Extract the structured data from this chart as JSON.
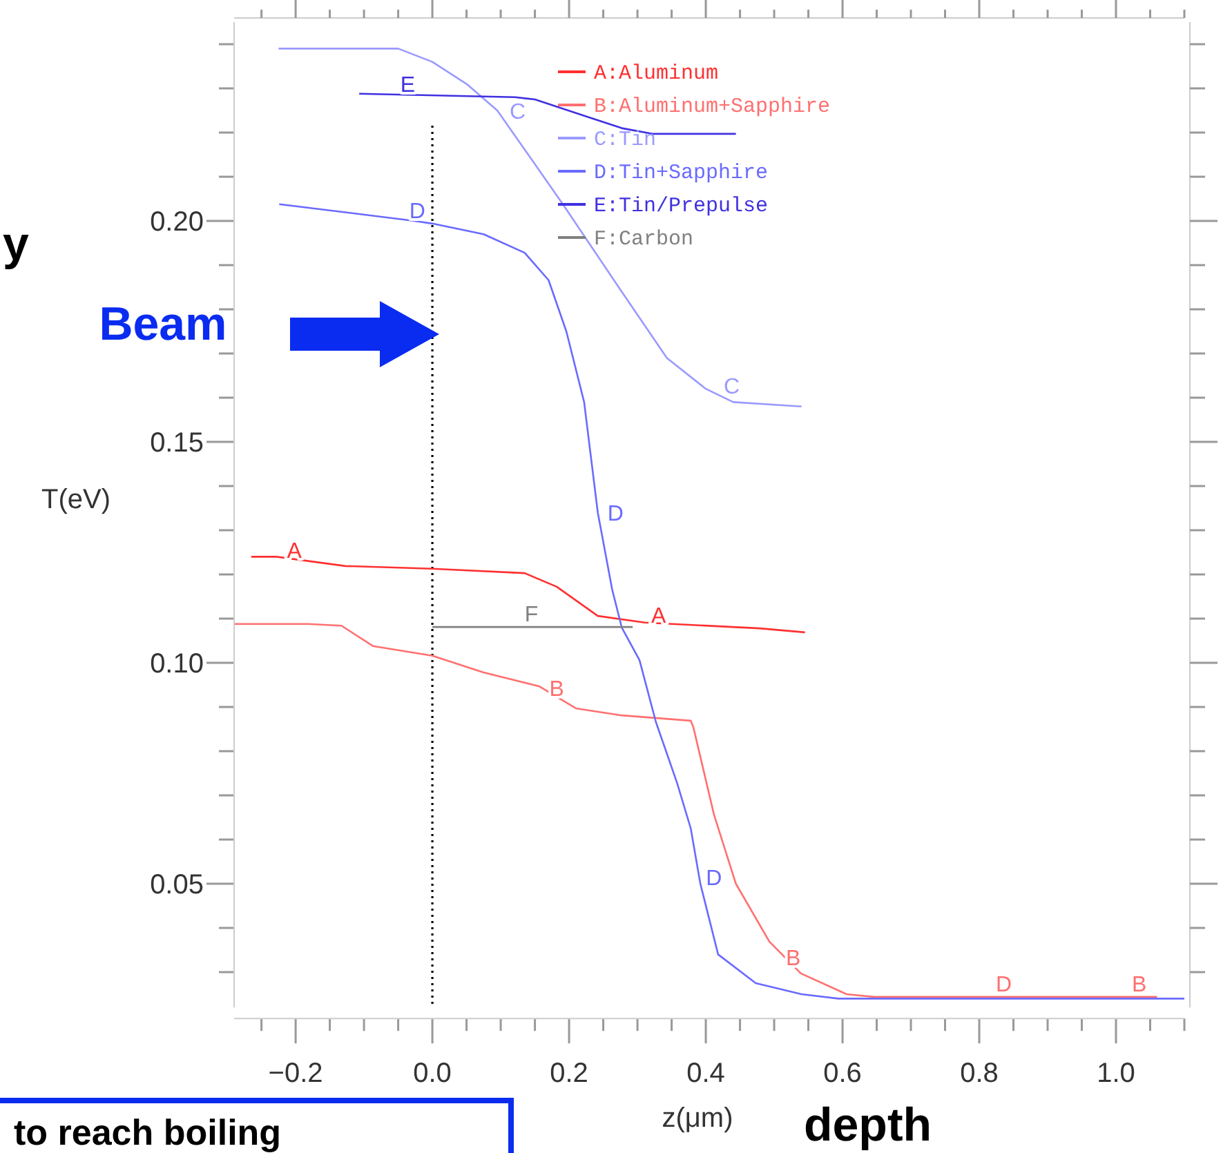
{
  "chart_data": {
    "type": "line",
    "xlabel": "z(μm)",
    "ylabel": "T(eV)",
    "xlim": [
      -0.29,
      1.1
    ],
    "ylim": [
      0.022,
      0.245
    ],
    "xticks": [
      {
        "value": -0.25,
        "label": null
      },
      {
        "value": -0.2,
        "label": "−0.2"
      },
      {
        "value": -0.15,
        "label": null
      },
      {
        "value": -0.1,
        "label": null
      },
      {
        "value": -0.05,
        "label": null
      },
      {
        "value": 0,
        "label": "0.0"
      },
      {
        "value": 0.05,
        "label": null
      },
      {
        "value": 0.1,
        "label": null
      },
      {
        "value": 0.15,
        "label": null
      },
      0.2,
      {
        "value": 0.25,
        "label": null
      },
      {
        "value": 0.3,
        "label": null
      },
      {
        "value": 0.35,
        "label": null
      },
      0.4,
      {
        "value": 0.45,
        "label": null
      },
      {
        "value": 0.5,
        "label": null
      },
      {
        "value": 0.55,
        "label": null
      },
      0.6,
      {
        "value": 0.65,
        "label": null
      },
      {
        "value": 0.7,
        "label": null
      },
      {
        "value": 0.75,
        "label": null
      },
      0.8,
      {
        "value": 0.85,
        "label": null
      },
      {
        "value": 0.9,
        "label": null
      },
      {
        "value": 0.95,
        "label": null
      },
      {
        "value": 1,
        "label": "1.0"
      },
      {
        "value": 1.05,
        "label": null
      },
      {
        "value": 1.1,
        "label": null
      }
    ],
    "yticks": [
      {
        "value": 0.03,
        "label": null
      },
      {
        "value": 0.04,
        "label": null
      },
      0.05,
      {
        "value": 0.06,
        "label": null
      },
      {
        "value": 0.07,
        "label": null
      },
      {
        "value": 0.08,
        "label": null
      },
      {
        "value": 0.09,
        "label": null
      },
      {
        "value": 0.1,
        "label": "0.10"
      },
      {
        "value": 0.11,
        "label": null
      },
      {
        "value": 0.12,
        "label": null
      },
      {
        "value": 0.13,
        "label": null
      },
      {
        "value": 0.14,
        "label": null
      },
      0.15,
      {
        "value": 0.16,
        "label": null
      },
      {
        "value": 0.17,
        "label": null
      },
      {
        "value": 0.18,
        "label": null
      },
      {
        "value": 0.19,
        "label": null
      },
      {
        "value": 0.2,
        "label": "0.20"
      },
      {
        "value": 0.21,
        "label": null
      },
      {
        "value": 0.22,
        "label": null
      },
      {
        "value": 0.23,
        "label": null
      },
      {
        "value": 0.24,
        "label": null
      }
    ],
    "grid": false,
    "legend": "top right",
    "marker": "none",
    "line_style": "solid",
    "series": [
      {
        "name": "A:Aluminum",
        "color": "#ff3030",
        "x": [
          -0.265,
          -0.228,
          -0.127,
          0,
          0.135,
          0.182,
          0.242,
          0.311,
          0.479,
          0.545
        ],
        "values": [
          0.124,
          0.124,
          0.1219,
          0.1213,
          0.1203,
          0.1172,
          0.1106,
          0.1091,
          0.1078,
          0.1069
        ]
      },
      {
        "name": "B:Aluminum+Sapphire",
        "color": "#ff7070",
        "x": [
          -0.289,
          -0.182,
          -0.133,
          -0.087,
          0,
          0.075,
          0.156,
          0.21,
          0.277,
          0.378,
          0.382,
          0.412,
          0.444,
          0.493,
          0.539,
          0.606,
          0.646,
          1.06
        ],
        "values": [
          0.1088,
          0.1088,
          0.1084,
          0.1038,
          0.1016,
          0.0978,
          0.0947,
          0.0897,
          0.0881,
          0.0869,
          0.0853,
          0.0656,
          0.05,
          0.0369,
          0.0297,
          0.025,
          0.0244,
          0.0244
        ]
      },
      {
        "name": "C:Tin",
        "color": "#9a9aff",
        "x": [
          -0.225,
          -0.05,
          0,
          0.05,
          0.095,
          0.19,
          0.277,
          0.343,
          0.4,
          0.44,
          0.54
        ],
        "values": [
          0.239,
          0.239,
          0.236,
          0.231,
          0.225,
          0.204,
          0.184,
          0.169,
          0.162,
          0.159,
          0.158
        ]
      },
      {
        "name": "D:Tin+Sapphire",
        "color": "#6a6aff",
        "x": [
          -0.224,
          -0.026,
          0,
          0.075,
          0.135,
          0.17,
          0.196,
          0.222,
          0.242,
          0.263,
          0.277,
          0.303,
          0.327,
          0.358,
          0.378,
          0.392,
          0.418,
          0.473,
          0.54,
          0.594,
          1.1
        ],
        "values": [
          0.2038,
          0.2,
          0.1994,
          0.197,
          0.1928,
          0.1866,
          0.175,
          0.159,
          0.134,
          0.1166,
          0.108,
          0.1006,
          0.0866,
          0.0728,
          0.0625,
          0.05,
          0.034,
          0.0275,
          0.025,
          0.024,
          0.024
        ]
      },
      {
        "name": "E:Tin/Prepulse",
        "color": "#4030e0",
        "x": [
          -0.107,
          0.121,
          0.15,
          0.23,
          0.277,
          0.323,
          0.444
        ],
        "values": [
          0.2288,
          0.228,
          0.2275,
          0.2234,
          0.221,
          0.2197,
          0.2197
        ]
      },
      {
        "name": "F:Carbon",
        "color": "#808080",
        "x": [
          0,
          0.293
        ],
        "values": [
          0.1081,
          0.1081
        ]
      }
    ],
    "ref_lines": [
      {
        "axis": "x",
        "value": 0,
        "color": "#000000",
        "line_style": "dotted"
      }
    ],
    "annotations": [
      {
        "text": "A",
        "x": -0.202,
        "y": 0.1225
      },
      {
        "text": "A",
        "x": 0.331,
        "y": 0.1078
      },
      {
        "text": "B",
        "x": 0.182,
        "y": 0.0913
      },
      {
        "text": "B",
        "x": 0.503,
        "y": 0.0334
      },
      {
        "text": "B",
        "x": 1.034,
        "y": 0.0244
      },
      {
        "text": "C",
        "x": 0.099,
        "y": 0.225
      },
      {
        "text": "C",
        "x": 0.438,
        "y": 0.1597
      },
      {
        "text": "D",
        "x": -0.022,
        "y": 0.1994
      },
      {
        "text": "D",
        "x": 0.242,
        "y": 0.134
      },
      {
        "text": "D",
        "x": 0.386,
        "y": 0.0516
      },
      {
        "text": "D",
        "x": 0.836,
        "y": 0.0244
      },
      {
        "text": "E",
        "x": -0.036,
        "y": 0.228
      },
      {
        "text": "F",
        "x": 0.145,
        "y": 0.1081
      },
      "Beam",
      "depth",
      "y",
      "to reach boiling"
    ]
  }
}
